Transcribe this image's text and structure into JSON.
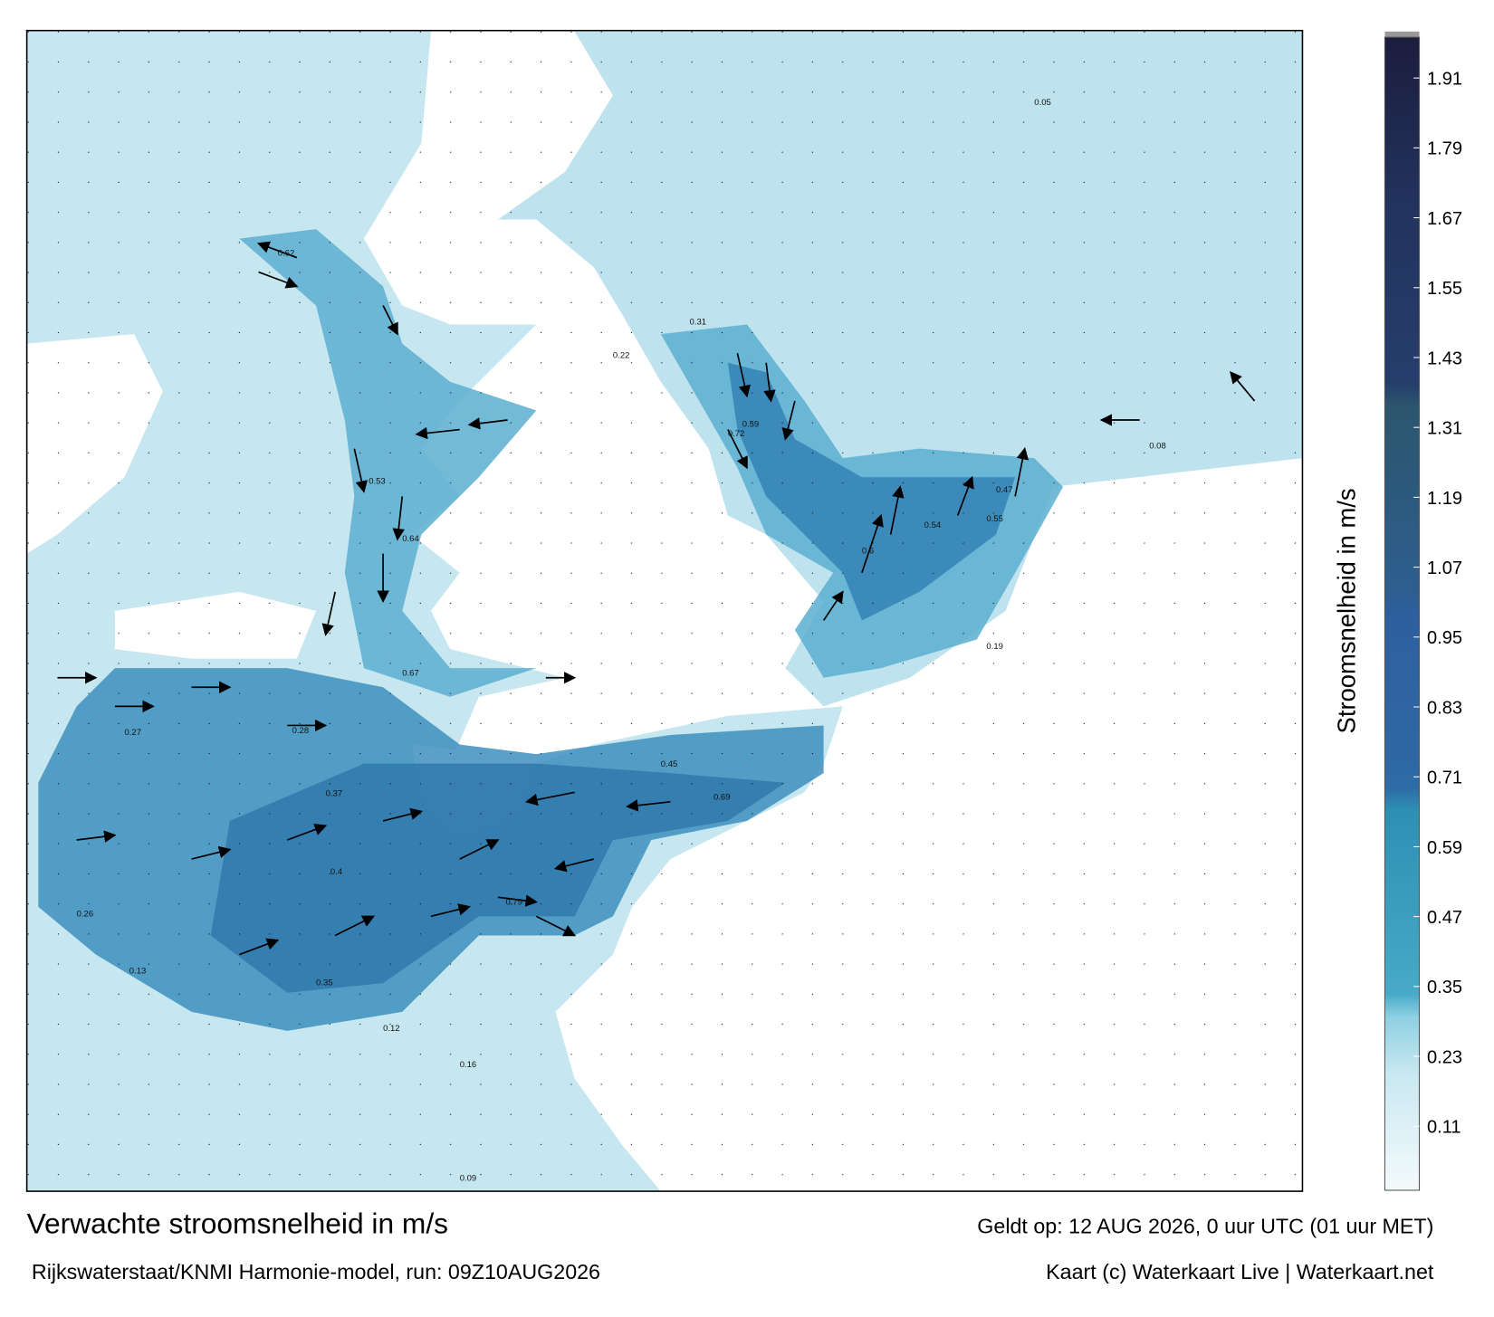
{
  "title": "Verwachte stroomsnelheid in m/s",
  "subtitle": "Rijkswaterstaat/KNMI Harmonie-model, run: 09Z10AUG2026",
  "valid": "Geldt op: 12 AUG 2026, 0 uur UTC (01 uur MET)",
  "credit": "Kaart (c) Waterkaart Live | Waterkaart.net",
  "colorbar": {
    "label": "Stroomsnelheid in m/s",
    "lim": [
      0,
      1.98
    ],
    "ticks": [
      0.11,
      0.23,
      0.35,
      0.47,
      0.59,
      0.71,
      0.83,
      0.95,
      1.07,
      1.19,
      1.31,
      1.43,
      1.55,
      1.67,
      1.79,
      1.91
    ]
  },
  "map_labels": [
    0.62,
    0.59,
    0.64,
    0.72,
    0.53,
    0.6,
    0.54,
    0.69,
    0.79,
    0.67,
    0.37,
    0.4,
    0.28,
    0.27,
    0.26,
    0.13,
    0.12,
    0.09,
    0.16,
    0.35,
    0.47,
    0.55,
    0.45,
    0.31,
    0.19,
    0.08,
    0.05,
    0.22
  ]
}
